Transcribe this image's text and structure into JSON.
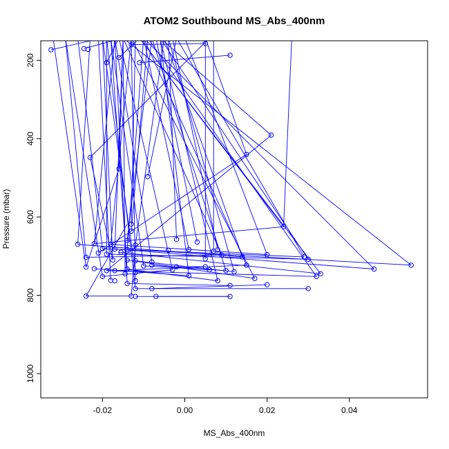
{
  "chart_data": {
    "type": "scatter",
    "title": "ATOM2 Southbound MS_Abs_400nm",
    "xlabel": "MS_Abs_400nm",
    "ylabel": "Pressure (mbar)",
    "xlim": [
      -0.035,
      0.059
    ],
    "ylim": [
      1062,
      150
    ],
    "y_reversed": true,
    "x_ticks": [
      -0.02,
      0.0,
      0.02,
      0.04
    ],
    "x_tick_labels": [
      "-0.02",
      "0.00",
      "0.02",
      "0.04"
    ],
    "y_ticks": [
      200,
      400,
      600,
      800,
      1000
    ],
    "y_tick_labels": [
      "200",
      "400",
      "600",
      "800",
      "1000"
    ],
    "series_color": "#0000ff",
    "style": "lines-and-open-circles",
    "series": [
      {
        "points": [
          [
            -0.0325,
            173
          ],
          [
            -0.02,
            143
          ],
          [
            -0.0245,
            170
          ],
          [
            -0.015,
            143
          ],
          [
            -0.0235,
            172
          ],
          [
            -0.014,
            143
          ],
          [
            -0.019,
            206
          ],
          [
            -0.016,
            143
          ],
          [
            -0.016,
            193
          ],
          [
            -0.011,
            143
          ],
          [
            -0.011,
            206
          ],
          [
            0.011,
            187
          ],
          [
            -0.0125,
            143
          ],
          [
            -0.013,
            160
          ],
          [
            0.005,
            157
          ],
          [
            -0.006,
            143
          ],
          [
            0.021,
            391
          ],
          [
            0.015,
            440
          ],
          [
            0.005,
            143
          ],
          [
            -0.023,
            448
          ],
          [
            -0.016,
            477
          ],
          [
            -0.009,
            497
          ],
          [
            -0.013,
            618
          ],
          [
            -0.013,
            636
          ],
          [
            0.024,
            625
          ],
          [
            -0.026,
            670
          ],
          [
            -0.022,
            668
          ],
          [
            -0.014,
            660
          ],
          [
            -0.012,
            672
          ],
          [
            -0.002,
            657
          ],
          [
            0.003,
            664
          ],
          [
            0.001,
            683
          ],
          [
            0.007,
            687
          ],
          [
            0.008,
            684
          ],
          [
            -0.004,
            685
          ],
          [
            -0.018,
            670
          ],
          [
            -0.02,
            681
          ],
          [
            -0.017,
            682
          ],
          [
            -0.0155,
            690
          ],
          [
            -0.014,
            683
          ],
          [
            -0.019,
            695
          ],
          [
            -0.021,
            692
          ],
          [
            0.02,
            696
          ],
          [
            0.029,
            702
          ],
          [
            0.03,
            708
          ],
          [
            0.014,
            702
          ],
          [
            0.009,
            697
          ],
          [
            0.005,
            707
          ],
          [
            -0.024,
            703
          ],
          [
            -0.0175,
            710
          ],
          [
            -0.014,
            710
          ],
          [
            -0.012,
            712
          ],
          [
            -0.008,
            715
          ],
          [
            -0.01,
            725
          ],
          [
            -0.024,
            728
          ],
          [
            -0.022,
            732
          ],
          [
            -0.019,
            737
          ],
          [
            -0.017,
            737
          ],
          [
            -0.014,
            733
          ],
          [
            -0.008,
            723
          ],
          [
            -0.002,
            727
          ],
          [
            0.005,
            727
          ],
          [
            0.015,
            723
          ],
          [
            0.012,
            740
          ],
          [
            0.01,
            737
          ],
          [
            0.006,
            735
          ],
          [
            0.055,
            723
          ],
          [
            0.046,
            733
          ],
          [
            0.033,
            745
          ],
          [
            0.032,
            752
          ],
          [
            0.017,
            757
          ],
          [
            0.008,
            763
          ],
          [
            0.001,
            750
          ],
          [
            -0.003,
            735
          ],
          [
            -0.012,
            742
          ],
          [
            -0.0145,
            745
          ],
          [
            -0.018,
            762
          ],
          [
            -0.017,
            763
          ],
          [
            -0.02,
            752
          ],
          [
            -0.014,
            770
          ],
          [
            -0.012,
            763
          ],
          [
            -0.012,
            783
          ],
          [
            -0.008,
            783
          ],
          [
            0.011,
            775
          ],
          [
            0.02,
            773
          ],
          [
            0.03,
            783
          ],
          [
            -0.024,
            802
          ],
          [
            -0.013,
            802
          ],
          [
            -0.012,
            803
          ],
          [
            -0.007,
            803
          ],
          [
            0.011,
            803
          ]
        ]
      }
    ],
    "lines": [
      [
        [
          -0.0325,
          173
        ],
        [
          -0.02,
          143
        ]
      ],
      [
        [
          -0.0245,
          170
        ],
        [
          -0.015,
          143
        ]
      ],
      [
        [
          -0.019,
          206
        ],
        [
          -0.016,
          143
        ]
      ],
      [
        [
          -0.016,
          193
        ],
        [
          -0.011,
          143
        ]
      ],
      [
        [
          -0.011,
          206
        ],
        [
          0.011,
          187
        ]
      ],
      [
        [
          -0.013,
          160
        ],
        [
          0.005,
          157
        ]
      ],
      [
        [
          0.021,
          391
        ],
        [
          -0.006,
          143
        ]
      ],
      [
        [
          0.015,
          440
        ],
        [
          0.005,
          143
        ]
      ],
      [
        [
          -0.026,
          670
        ],
        [
          -0.023,
          143
        ]
      ],
      [
        [
          -0.024,
          703
        ],
        [
          -0.029,
          143
        ]
      ],
      [
        [
          -0.024,
          728
        ],
        [
          -0.032,
          143
        ]
      ],
      [
        [
          -0.022,
          668
        ],
        [
          -0.017,
          143
        ]
      ],
      [
        [
          -0.02,
          681
        ],
        [
          -0.026,
          143
        ]
      ],
      [
        [
          -0.019,
          695
        ],
        [
          -0.019,
          143
        ]
      ],
      [
        [
          -0.018,
          670
        ],
        [
          -0.013,
          143
        ]
      ],
      [
        [
          -0.017,
          682
        ],
        [
          -0.015,
          143
        ]
      ],
      [
        [
          -0.016,
          477
        ],
        [
          -0.015,
          143
        ]
      ],
      [
        [
          -0.014,
          683
        ],
        [
          -0.01,
          143
        ]
      ],
      [
        [
          -0.014,
          660
        ],
        [
          -0.008,
          143
        ]
      ],
      [
        [
          -0.012,
          672
        ],
        [
          -0.005,
          143
        ]
      ],
      [
        [
          -0.013,
          618
        ],
        [
          -0.012,
          143
        ]
      ],
      [
        [
          -0.013,
          636
        ],
        [
          -0.009,
          143
        ]
      ],
      [
        [
          -0.009,
          497
        ],
        [
          -0.002,
          143
        ]
      ],
      [
        [
          -0.023,
          448
        ],
        [
          0.006,
          143
        ]
      ],
      [
        [
          -0.002,
          657
        ],
        [
          -0.004,
          143
        ]
      ],
      [
        [
          0.003,
          664
        ],
        [
          -0.007,
          143
        ]
      ],
      [
        [
          0.001,
          683
        ],
        [
          -0.01,
          143
        ]
      ],
      [
        [
          0.005,
          707
        ],
        [
          0.005,
          143
        ]
      ],
      [
        [
          0.007,
          687
        ],
        [
          0.007,
          143
        ]
      ],
      [
        [
          0.008,
          684
        ],
        [
          -0.003,
          143
        ]
      ],
      [
        [
          0.009,
          697
        ],
        [
          -0.015,
          143
        ]
      ],
      [
        [
          0.014,
          702
        ],
        [
          -0.005,
          143
        ]
      ],
      [
        [
          0.015,
          723
        ],
        [
          -0.01,
          143
        ]
      ],
      [
        [
          0.02,
          696
        ],
        [
          0.0,
          143
        ]
      ],
      [
        [
          0.024,
          625
        ],
        [
          -0.011,
          143
        ]
      ],
      [
        [
          0.024,
          625
        ],
        [
          0.026,
          143
        ]
      ],
      [
        [
          0.029,
          702
        ],
        [
          -0.002,
          143
        ]
      ],
      [
        [
          0.03,
          708
        ],
        [
          -0.006,
          143
        ]
      ],
      [
        [
          0.032,
          752
        ],
        [
          -0.009,
          143
        ]
      ],
      [
        [
          0.033,
          745
        ],
        [
          -0.011,
          143
        ]
      ],
      [
        [
          0.017,
          757
        ],
        [
          -0.013,
          143
        ]
      ],
      [
        [
          0.01,
          737
        ],
        [
          -0.008,
          143
        ]
      ],
      [
        [
          0.012,
          740
        ],
        [
          -0.004,
          143
        ]
      ],
      [
        [
          0.008,
          763
        ],
        [
          -0.006,
          143
        ]
      ],
      [
        [
          0.055,
          723
        ],
        [
          -0.015,
          143
        ]
      ],
      [
        [
          0.046,
          733
        ],
        [
          -0.01,
          143
        ]
      ],
      [
        [
          0.001,
          750
        ],
        [
          -0.006,
          143
        ]
      ],
      [
        [
          -0.003,
          735
        ],
        [
          -0.016,
          143
        ]
      ],
      [
        [
          -0.008,
          715
        ],
        [
          -0.017,
          143
        ]
      ],
      [
        [
          -0.01,
          725
        ],
        [
          -0.018,
          143
        ]
      ],
      [
        [
          -0.012,
          742
        ],
        [
          -0.02,
          143
        ]
      ],
      [
        [
          -0.0145,
          745
        ],
        [
          -0.015,
          143
        ]
      ],
      [
        [
          -0.02,
          752
        ],
        [
          -0.029,
          143
        ]
      ],
      [
        [
          -0.018,
          762
        ],
        [
          -0.021,
          143
        ]
      ],
      [
        [
          -0.014,
          770
        ],
        [
          -0.017,
          143
        ]
      ],
      [
        [
          -0.012,
          763
        ],
        [
          -0.013,
          143
        ]
      ],
      [
        [
          -0.012,
          783
        ],
        [
          -0.019,
          143
        ]
      ],
      [
        [
          -0.014,
          733
        ],
        [
          -0.018,
          143
        ]
      ],
      [
        [
          -0.0175,
          710
        ],
        [
          -0.02,
          143
        ]
      ],
      [
        [
          -0.021,
          692
        ],
        [
          0.015,
          440
        ]
      ],
      [
        [
          -0.019,
          737
        ],
        [
          0.021,
          391
        ]
      ],
      [
        [
          -0.024,
          728
        ],
        [
          -0.016,
          477
        ]
      ],
      [
        [
          -0.022,
          668
        ],
        [
          0.024,
          625
        ]
      ],
      [
        [
          -0.026,
          670
        ],
        [
          0.014,
          702
        ]
      ],
      [
        [
          -0.024,
          703
        ],
        [
          0.009,
          697
        ]
      ],
      [
        [
          -0.02,
          681
        ],
        [
          0.029,
          702
        ]
      ],
      [
        [
          -0.019,
          695
        ],
        [
          0.03,
          708
        ]
      ],
      [
        [
          -0.018,
          670
        ],
        [
          0.02,
          696
        ]
      ],
      [
        [
          -0.014,
          683
        ],
        [
          0.055,
          723
        ]
      ],
      [
        [
          -0.017,
          682
        ],
        [
          0.046,
          733
        ]
      ],
      [
        [
          -0.016,
          690
        ],
        [
          0.033,
          745
        ]
      ],
      [
        [
          -0.019,
          737
        ],
        [
          0.032,
          752
        ]
      ],
      [
        [
          -0.017,
          737
        ],
        [
          0.015,
          723
        ]
      ],
      [
        [
          -0.014,
          710
        ],
        [
          0.017,
          757
        ]
      ],
      [
        [
          -0.012,
          712
        ],
        [
          0.012,
          740
        ]
      ],
      [
        [
          -0.01,
          725
        ],
        [
          0.01,
          737
        ]
      ],
      [
        [
          -0.008,
          723
        ],
        [
          0.006,
          735
        ]
      ],
      [
        [
          -0.002,
          727
        ],
        [
          0.005,
          727
        ]
      ],
      [
        [
          -0.014,
          733
        ],
        [
          0.008,
          763
        ]
      ],
      [
        [
          -0.022,
          732
        ],
        [
          0.001,
          750
        ]
      ],
      [
        [
          -0.02,
          752
        ],
        [
          -0.003,
          735
        ]
      ],
      [
        [
          -0.023,
          448
        ],
        [
          -0.0175,
          710
        ]
      ],
      [
        [
          -0.012,
          783
        ],
        [
          0.03,
          783
        ]
      ],
      [
        [
          -0.008,
          783
        ],
        [
          0.02,
          773
        ]
      ],
      [
        [
          -0.014,
          770
        ],
        [
          0.011,
          775
        ]
      ],
      [
        [
          -0.024,
          802
        ],
        [
          -0.013,
          802
        ]
      ],
      [
        [
          -0.012,
          803
        ],
        [
          0.011,
          803
        ]
      ],
      [
        [
          -0.007,
          803
        ],
        [
          0.011,
          803
        ]
      ],
      [
        [
          -0.024,
          802
        ],
        [
          -0.014,
          618
        ]
      ],
      [
        [
          -0.013,
          802
        ],
        [
          -0.012,
          672
        ]
      ]
    ]
  }
}
